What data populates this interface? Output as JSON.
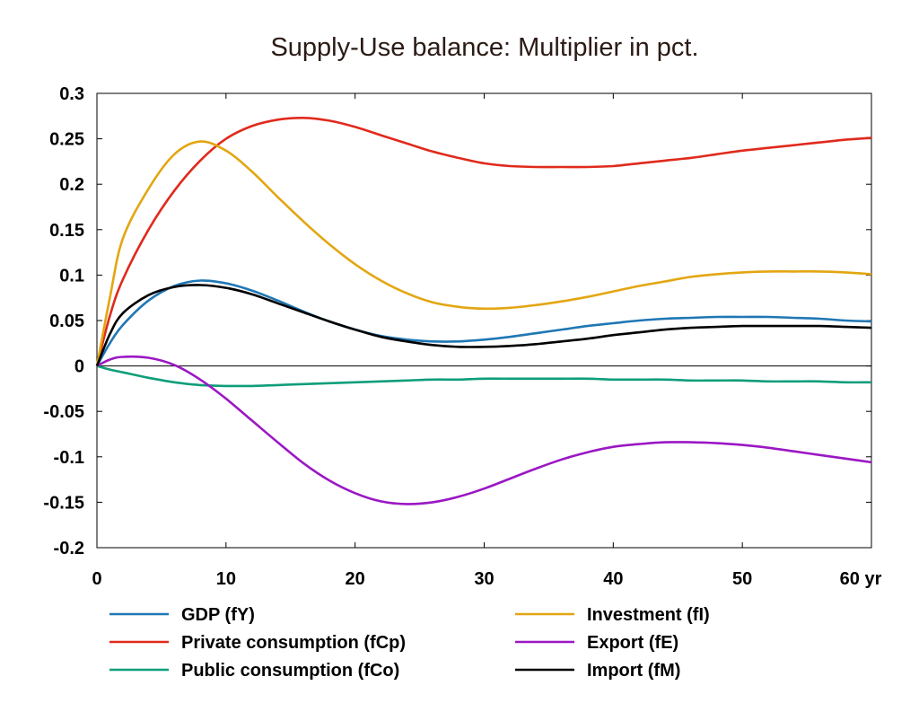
{
  "chart_data": {
    "type": "line",
    "title": "Supply-Use balance: Multiplier in pct.",
    "xlabel": "",
    "ylabel": "",
    "xlim": [
      0,
      60
    ],
    "ylim": [
      -0.2,
      0.3
    ],
    "x_ticks": [
      {
        "value": 0,
        "label": "0"
      },
      {
        "value": 10,
        "label": "10"
      },
      {
        "value": 20,
        "label": "20"
      },
      {
        "value": 30,
        "label": "30"
      },
      {
        "value": 40,
        "label": "40"
      },
      {
        "value": 50,
        "label": "50"
      },
      {
        "value": 60,
        "label": "60 yr"
      }
    ],
    "y_ticks": [
      {
        "value": 0.3,
        "label": "0.3"
      },
      {
        "value": 0.25,
        "label": "0.25"
      },
      {
        "value": 0.2,
        "label": "0.2"
      },
      {
        "value": 0.15,
        "label": "0.15"
      },
      {
        "value": 0.1,
        "label": "0.1"
      },
      {
        "value": 0.05,
        "label": "0.05"
      },
      {
        "value": 0,
        "label": "0"
      },
      {
        "value": -0.05,
        "label": "-0.05"
      },
      {
        "value": -0.1,
        "label": "-0.1"
      },
      {
        "value": -0.15,
        "label": "-0.15"
      },
      {
        "value": -0.2,
        "label": "-0.2"
      }
    ],
    "grid": false,
    "zero_line": true,
    "legend_position": "bottom",
    "x": [
      0,
      1,
      2,
      4,
      6,
      8,
      10,
      12,
      14,
      16,
      18,
      20,
      22,
      24,
      26,
      28,
      30,
      32,
      34,
      36,
      38,
      40,
      42,
      44,
      46,
      48,
      50,
      52,
      54,
      56,
      58,
      60
    ],
    "series": [
      {
        "name": "GDP (fY)",
        "color": "#1f77b4",
        "values": [
          0,
          0.025,
          0.045,
          0.072,
          0.088,
          0.094,
          0.091,
          0.083,
          0.072,
          0.06,
          0.049,
          0.04,
          0.033,
          0.029,
          0.027,
          0.027,
          0.029,
          0.032,
          0.036,
          0.04,
          0.044,
          0.047,
          0.05,
          0.052,
          0.053,
          0.054,
          0.054,
          0.054,
          0.053,
          0.052,
          0.05,
          0.049
        ]
      },
      {
        "name": "Private consumption (fCp)",
        "color": "#e02a1c",
        "values": [
          0,
          0.055,
          0.095,
          0.15,
          0.193,
          0.226,
          0.25,
          0.264,
          0.271,
          0.273,
          0.27,
          0.263,
          0.254,
          0.245,
          0.236,
          0.229,
          0.223,
          0.22,
          0.219,
          0.219,
          0.219,
          0.22,
          0.223,
          0.226,
          0.229,
          0.233,
          0.237,
          0.24,
          0.243,
          0.246,
          0.249,
          0.251
        ]
      },
      {
        "name": "Public consumption (fCo)",
        "color": "#0e9e7a",
        "values": [
          0,
          -0.004,
          -0.007,
          -0.013,
          -0.018,
          -0.021,
          -0.022,
          -0.022,
          -0.021,
          -0.02,
          -0.019,
          -0.018,
          -0.017,
          -0.016,
          -0.015,
          -0.015,
          -0.014,
          -0.014,
          -0.014,
          -0.014,
          -0.014,
          -0.015,
          -0.015,
          -0.015,
          -0.016,
          -0.016,
          -0.016,
          -0.017,
          -0.017,
          -0.017,
          -0.018,
          -0.018
        ]
      },
      {
        "name": "Investment (fI)",
        "color": "#e3a612",
        "values": [
          0,
          0.075,
          0.14,
          0.195,
          0.233,
          0.247,
          0.237,
          0.214,
          0.186,
          0.159,
          0.134,
          0.112,
          0.094,
          0.08,
          0.07,
          0.065,
          0.063,
          0.064,
          0.067,
          0.071,
          0.076,
          0.082,
          0.088,
          0.093,
          0.098,
          0.101,
          0.103,
          0.104,
          0.104,
          0.104,
          0.103,
          0.101
        ]
      },
      {
        "name": "Export (fE)",
        "color": "#9b17c4",
        "values": [
          0,
          0.007,
          0.01,
          0.009,
          0.001,
          -0.015,
          -0.036,
          -0.06,
          -0.084,
          -0.107,
          -0.126,
          -0.14,
          -0.149,
          -0.152,
          -0.15,
          -0.144,
          -0.135,
          -0.124,
          -0.113,
          -0.103,
          -0.095,
          -0.089,
          -0.086,
          -0.084,
          -0.084,
          -0.085,
          -0.087,
          -0.09,
          -0.094,
          -0.098,
          -0.102,
          -0.106
        ]
      },
      {
        "name": "Import (fM)",
        "color": "#000000",
        "values": [
          0,
          0.035,
          0.058,
          0.078,
          0.087,
          0.089,
          0.086,
          0.079,
          0.069,
          0.059,
          0.049,
          0.04,
          0.032,
          0.027,
          0.023,
          0.021,
          0.021,
          0.022,
          0.024,
          0.027,
          0.03,
          0.034,
          0.037,
          0.04,
          0.042,
          0.043,
          0.044,
          0.044,
          0.044,
          0.044,
          0.043,
          0.042
        ]
      }
    ]
  }
}
